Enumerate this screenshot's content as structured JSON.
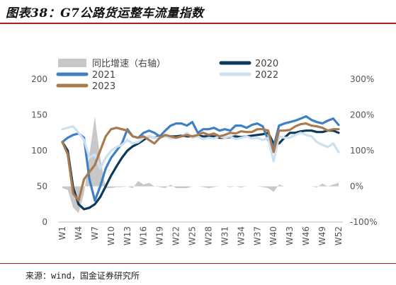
{
  "title": "图表38：G7公路货运整车流量指数",
  "source": "来源：wind，国金证券研究所",
  "chart_data": {
    "type": "line",
    "title": "图表38：G7公路货运整车流量指数",
    "xlabel": "",
    "ylabel": "",
    "categories": [
      "W1",
      "W2",
      "W3",
      "W4",
      "W5",
      "W6",
      "W7",
      "W8",
      "W9",
      "W10",
      "W11",
      "W12",
      "W13",
      "W14",
      "W15",
      "W16",
      "W17",
      "W18",
      "W19",
      "W20",
      "W21",
      "W22",
      "W23",
      "W24",
      "W25",
      "W26",
      "W27",
      "W28",
      "W29",
      "W30",
      "W31",
      "W32",
      "W33",
      "W34",
      "W35",
      "W36",
      "W37",
      "W38",
      "W39",
      "W40",
      "W41",
      "W42",
      "W43",
      "W44",
      "W45",
      "W46",
      "W47",
      "W48",
      "W49",
      "W50",
      "W51",
      "W52"
    ],
    "x_tick_labels": [
      "W1",
      "W4",
      "W7",
      "W10",
      "W13",
      "W16",
      "W19",
      "W22",
      "W25",
      "W28",
      "W31",
      "W34",
      "W37",
      "W40",
      "W43",
      "W46",
      "W49",
      "W52"
    ],
    "y_left": {
      "ylim": [
        0,
        200
      ],
      "ticks": [
        "0",
        "50",
        "100",
        "150",
        "200"
      ]
    },
    "y_right": {
      "ylim": [
        -100,
        300
      ],
      "ticks": [
        "-100%",
        "0%",
        "100%",
        "200%",
        "300%"
      ]
    },
    "legend": {
      "placement": "top",
      "columns": 2
    },
    "series": [
      {
        "name": "同比增速（右轴）",
        "type": "area",
        "axis": "right",
        "color": "#c8c8c8",
        "values": [
          -5,
          -10,
          -60,
          -75,
          -20,
          90,
          195,
          80,
          -5,
          -5,
          -2,
          -2,
          0,
          -5,
          15,
          5,
          10,
          0,
          -2,
          -5,
          5,
          -5,
          -5,
          -5,
          0,
          0,
          -2,
          -5,
          -2,
          0,
          0,
          -2,
          0,
          -3,
          0,
          0,
          0,
          -2,
          -5,
          -15,
          5,
          0,
          0,
          0,
          0,
          0,
          0,
          -3,
          8,
          0,
          5,
          10
        ]
      },
      {
        "name": "2020",
        "type": "line",
        "axis": "left",
        "color": "#0b3a5a",
        "values": [
          112,
          100,
          48,
          25,
          18,
          20,
          25,
          35,
          50,
          65,
          78,
          90,
          100,
          106,
          110,
          115,
          120,
          118,
          120,
          120,
          120,
          120,
          121,
          120,
          120,
          121,
          120,
          120,
          120,
          118,
          118,
          119,
          120,
          119,
          120,
          121,
          122,
          123,
          125,
          110,
          110,
          118,
          125,
          125,
          127,
          128,
          128,
          126,
          126,
          128,
          128,
          125
        ]
      },
      {
        "name": "2021",
        "type": "line",
        "axis": "left",
        "color": "#3f7fc3",
        "values": [
          112,
          118,
          122,
          124,
          118,
          60,
          30,
          50,
          75,
          90,
          100,
          110,
          130,
          120,
          118,
          125,
          128,
          125,
          120,
          128,
          135,
          138,
          138,
          135,
          140,
          125,
          130,
          130,
          132,
          128,
          130,
          128,
          135,
          135,
          132,
          136,
          138,
          134,
          115,
          105,
          135,
          138,
          140,
          142,
          145,
          148,
          143,
          140,
          138,
          142,
          145,
          136
        ]
      },
      {
        "name": "2022",
        "type": "line",
        "axis": "left",
        "color": "#cce0f0",
        "values": [
          130,
          132,
          134,
          125,
          115,
          90,
          95,
          75,
          90,
          100,
          105,
          108,
          115,
          110,
          112,
          118,
          120,
          118,
          118,
          120,
          117,
          118,
          120,
          125,
          118,
          120,
          116,
          118,
          117,
          120,
          118,
          120,
          116,
          118,
          120,
          117,
          118,
          115,
          118,
          85,
          120,
          118,
          118,
          122,
          125,
          122,
          120,
          112,
          108,
          105,
          110,
          98
        ]
      },
      {
        "name": "2023",
        "type": "line",
        "axis": "left",
        "color": "#a97a4e",
        "values": [
          112,
          95,
          40,
          30,
          60,
          70,
          80,
          100,
          120,
          130,
          132,
          130,
          128,
          120,
          118,
          120,
          115,
          110,
          118,
          122,
          120,
          118,
          120,
          122,
          120,
          122,
          125,
          122,
          124,
          120,
          122,
          125,
          124,
          127,
          126,
          126,
          130,
          130,
          128,
          98,
          128,
          128,
          129,
          134,
          137,
          138,
          135,
          134,
          132,
          128,
          130,
          130
        ]
      }
    ]
  }
}
